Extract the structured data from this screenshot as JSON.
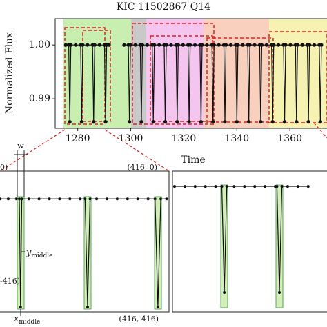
{
  "chart_data": [
    {
      "type": "line",
      "title": "KIC 11502867 Q14",
      "xlabel": "Time",
      "ylabel": "Normalized Flux",
      "color": "#111111",
      "x": [
        1275.5,
        1276.6,
        1277,
        1277.4,
        1279.2,
        1281.1,
        1281.5,
        1281.9,
        1283.7,
        1285.6,
        1286,
        1286.4,
        1288.2,
        1290.1,
        1290.5,
        1290.9,
        1291.8,
        1294.5,
        1297.5,
        1299.1,
        1299.5,
        1299.9,
        1301.7,
        1303.6,
        1304,
        1304.4,
        1306.2,
        1308.1,
        1308.5,
        1308.9,
        1310.7,
        1312.6,
        1313,
        1313.4,
        1315.2,
        1317.1,
        1317.5,
        1317.9,
        1319.7,
        1321.6,
        1322,
        1322.4,
        1324.2,
        1326.1,
        1326.5,
        1326.9,
        1328.7,
        1330.6,
        1331,
        1331.4,
        1333.2,
        1335.1,
        1335.5,
        1335.9,
        1337.7,
        1339.6,
        1340,
        1340.4,
        1342.2,
        1344.1,
        1344.5,
        1344.9,
        1346.7,
        1348.6,
        1349,
        1349.4,
        1351.2,
        1353.1,
        1353.5,
        1353.9,
        1355.7,
        1357.6,
        1358,
        1358.4,
        1360.2,
        1362.1,
        1362.5,
        1362.9,
        1364.7,
        1366.6,
        1367,
        1367.4,
        1369.2,
        1371.1,
        1371.5,
        1371.9
      ],
      "values": [
        1.0,
        1.0,
        0.9857,
        1.0,
        1.0,
        1.0,
        0.9857,
        1.0,
        1.0,
        1.0,
        0.9857,
        1.0,
        1.0,
        1.0,
        0.9857,
        1.0,
        1.0,
        null,
        1.0,
        1.0,
        0.9857,
        1.0,
        1.0,
        1.0,
        0.9857,
        1.0,
        1.0,
        1.0,
        0.9857,
        1.0,
        1.0,
        1.0,
        0.9857,
        1.0,
        1.0,
        1.0,
        0.9857,
        1.0,
        1.0,
        1.0,
        0.9857,
        1.0,
        1.0,
        1.0,
        0.9857,
        1.0,
        1.0,
        1.0,
        0.9857,
        1.0,
        1.0,
        1.0,
        0.9857,
        1.0,
        1.0,
        1.0,
        0.9857,
        1.0,
        1.0,
        1.0,
        0.9857,
        1.0,
        1.0,
        1.0,
        0.9857,
        1.0,
        1.0,
        1.0,
        0.9857,
        1.0,
        1.0,
        1.0,
        0.9857,
        1.0,
        1.0,
        1.0,
        0.9857,
        1.0,
        1.0,
        1.0,
        0.9857,
        1.0,
        1.0,
        1.0,
        0.9857,
        1.0
      ],
      "xlim": [
        1271.5,
        1374
      ],
      "ylim": [
        0.9845,
        1.0049
      ],
      "xticks": [
        1280,
        1300,
        1320,
        1340,
        1360
      ],
      "yticks": [
        0.99,
        {
          "value": 1,
          "label": "1.00"
        }
      ]
    },
    {
      "type": "line",
      "color": "#111111",
      "x": [
        5,
        25,
        45,
        52,
        55,
        58,
        75,
        100,
        125,
        150,
        175,
        200,
        212,
        218,
        224,
        240,
        265,
        290,
        315,
        340,
        365,
        382,
        389,
        396,
        410
      ],
      "values": [
        82,
        82,
        82,
        82,
        402,
        82,
        82,
        82,
        82,
        82,
        82,
        82,
        82,
        402,
        82,
        82,
        82,
        82,
        82,
        82,
        82,
        82,
        402,
        82,
        82
      ],
      "xlim": [
        0,
        416
      ],
      "ylim": [
        416,
        0
      ],
      "annotations": [
        {
          "text": "0)"
        },
        {
          "text": "(416, 0)"
        },
        {
          "text": "w"
        },
        {
          "text": "y",
          "sub": "middle"
        },
        {
          "text": "-416)"
        },
        {
          "text": "(416, 416)"
        },
        {
          "text": "x",
          "sub": "middle"
        }
      ]
    },
    {
      "type": "line",
      "color": "#111111",
      "x": [
        5,
        30,
        55,
        80,
        105,
        120,
        126,
        132,
        150,
        175,
        200,
        225,
        250,
        254,
        260,
        266,
        280,
        305,
        330
      ],
      "values": [
        45,
        45,
        45,
        45,
        45,
        45,
        359,
        45,
        45,
        45,
        45,
        45,
        45,
        45,
        359,
        45,
        45,
        45,
        45
      ],
      "xlim": [
        0,
        416
      ],
      "ylim": [
        416,
        0
      ]
    }
  ]
}
